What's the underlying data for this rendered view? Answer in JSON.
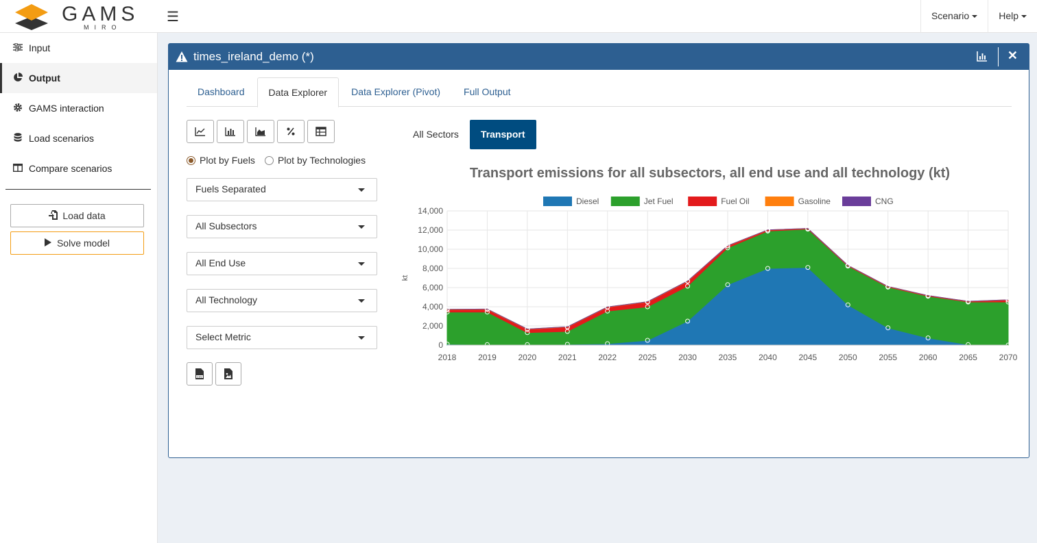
{
  "app": {
    "logo_text": "GAMS",
    "logo_sub": "MIRO"
  },
  "navbar": {
    "scenario_label": "Scenario",
    "help_label": "Help"
  },
  "sidebar": {
    "items": [
      {
        "label": "Input",
        "icon": "sliders-icon"
      },
      {
        "label": "Output",
        "icon": "pie-chart-icon"
      },
      {
        "label": "GAMS interaction",
        "icon": "gear-icon"
      },
      {
        "label": "Load scenarios",
        "icon": "database-icon"
      },
      {
        "label": "Compare scenarios",
        "icon": "columns-icon"
      }
    ],
    "load_data_label": "Load data",
    "solve_model_label": "Solve model"
  },
  "box": {
    "title": "times_ireland_demo (*)",
    "tabs": [
      "Dashboard",
      "Data Explorer",
      "Data Explorer (Pivot)",
      "Full Output"
    ],
    "active_tab": "Data Explorer"
  },
  "controls": {
    "radio_fuels": "Plot by Fuels",
    "radio_tech": "Plot by Technologies",
    "selected_radio": "Plot by Fuels",
    "selects": [
      "Fuels Separated",
      "All Subsectors",
      "All End Use",
      "All Technology",
      "Select Metric"
    ]
  },
  "sector_tabs": {
    "all_sectors": "All Sectors",
    "transport": "Transport",
    "active": "Transport"
  },
  "chart_data": {
    "type": "area",
    "title": "Transport emissions for all subsectors, all end use and all technology (kt)",
    "xlabel": "",
    "ylabel": "kt",
    "stacked": true,
    "ylim": [
      0,
      14000
    ],
    "yticks": [
      0,
      2000,
      4000,
      6000,
      8000,
      10000,
      12000,
      14000
    ],
    "ytick_labels": [
      "0",
      "2,000",
      "4,000",
      "6,000",
      "8,000",
      "10,000",
      "12,000",
      "14,000"
    ],
    "categories": [
      "2018",
      "2019",
      "2020",
      "2021",
      "2022",
      "2025",
      "2030",
      "2035",
      "2040",
      "2045",
      "2050",
      "2055",
      "2060",
      "2065",
      "2070"
    ],
    "legend_position": "top",
    "grid": true,
    "series": [
      {
        "name": "Diesel",
        "color": "#1f77b4",
        "values": [
          100,
          50,
          50,
          80,
          150,
          500,
          2500,
          6300,
          8000,
          8100,
          4200,
          1800,
          750,
          50,
          0
        ]
      },
      {
        "name": "Jet Fuel",
        "color": "#2ca02c",
        "values": [
          3350,
          3400,
          1250,
          1350,
          3400,
          3500,
          3650,
          3850,
          3900,
          4000,
          4050,
          4250,
          4350,
          4450,
          4500
        ]
      },
      {
        "name": "Fuel Oil",
        "color": "#e31a1c",
        "values": [
          250,
          280,
          350,
          450,
          400,
          500,
          500,
          200,
          100,
          50,
          50,
          50,
          50,
          50,
          200
        ]
      },
      {
        "name": "Gasoline",
        "color": "#ff7f0e",
        "values": [
          30,
          30,
          30,
          30,
          30,
          30,
          30,
          20,
          20,
          20,
          20,
          20,
          20,
          20,
          20
        ]
      },
      {
        "name": "CNG",
        "color": "#6a3d9a",
        "values": [
          0,
          0,
          0,
          0,
          0,
          0,
          0,
          0,
          0,
          0,
          0,
          0,
          0,
          0,
          0
        ]
      }
    ]
  }
}
